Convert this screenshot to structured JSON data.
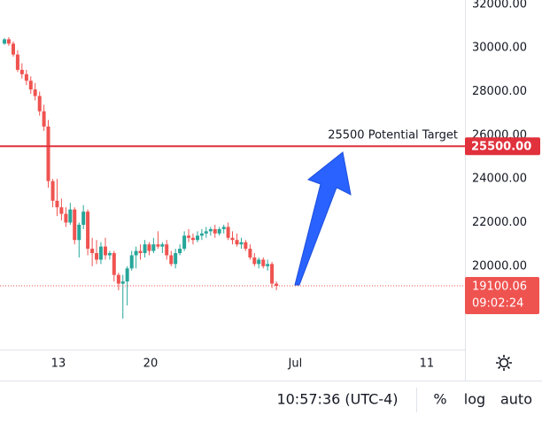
{
  "chart_data": {
    "type": "candlestick",
    "x": [
      8.9,
      9.23,
      9.57,
      9.9,
      10.23,
      10.57,
      10.9,
      11.23,
      11.57,
      11.9,
      12.23,
      12.57,
      12.9,
      13.23,
      13.57,
      13.9,
      14.23,
      14.57,
      14.9,
      15.23,
      15.57,
      15.9,
      16.23,
      16.57,
      16.9,
      17.23,
      17.57,
      17.9,
      18.23,
      18.57,
      18.9,
      19.23,
      19.57,
      19.9,
      20.23,
      20.57,
      20.9,
      21.23,
      21.57,
      21.9,
      22.23,
      22.57,
      22.9,
      23.23,
      23.57,
      23.9,
      24.23,
      24.57,
      24.9,
      25.23,
      25.57,
      25.9,
      26.23,
      26.57,
      26.9,
      27.23,
      27.57,
      27.9,
      28.23,
      28.57,
      28.9,
      29.23,
      29.57
    ],
    "open": [
      30200,
      30400,
      30200,
      29700,
      29000,
      28800,
      28500,
      28100,
      27800,
      27100,
      26400,
      23900,
      23000,
      22700,
      22400,
      22000,
      22600,
      21200,
      21900,
      22500,
      20800,
      20600,
      20300,
      20900,
      20500,
      20600,
      19600,
      19200,
      19300,
      19900,
      20500,
      20700,
      20600,
      21000,
      20700,
      21000,
      20900,
      21000,
      20500,
      20100,
      20600,
      20800,
      21400,
      21300,
      21200,
      21400,
      21500,
      21600,
      21700,
      21500,
      21700,
      21800,
      21300,
      21200,
      21000,
      21100,
      20800,
      20400,
      20100,
      20300,
      20000,
      20100,
      19200
    ],
    "high": [
      30450,
      30500,
      30300,
      29900,
      29300,
      29000,
      28700,
      28400,
      28000,
      27400,
      26700,
      24000,
      24000,
      23100,
      22700,
      22900,
      22700,
      22000,
      22800,
      22600,
      21300,
      21200,
      21100,
      21300,
      20700,
      20700,
      19700,
      19600,
      20000,
      20700,
      20900,
      21000,
      21200,
      21100,
      21300,
      21600,
      21100,
      21200,
      20700,
      20800,
      21000,
      21600,
      21700,
      21500,
      21600,
      21700,
      21800,
      21800,
      21900,
      21800,
      21900,
      22000,
      21600,
      21500,
      21300,
      21200,
      21000,
      20600,
      20400,
      20400,
      20300,
      20200,
      19300
    ],
    "low": [
      30150,
      30100,
      29600,
      28900,
      28600,
      28300,
      27900,
      27600,
      26900,
      26200,
      23600,
      22700,
      22300,
      22100,
      21800,
      21900,
      21000,
      20400,
      21700,
      20500,
      20000,
      20100,
      20100,
      20300,
      20300,
      19300,
      18900,
      17600,
      18200,
      19800,
      19900,
      20300,
      20400,
      20500,
      20600,
      20800,
      20600,
      20300,
      20000,
      19900,
      20500,
      20700,
      21100,
      21000,
      21100,
      21200,
      21300,
      21400,
      21300,
      21400,
      21500,
      21200,
      21000,
      20900,
      20800,
      20700,
      20300,
      20000,
      19900,
      19900,
      19800,
      19000,
      18900
    ],
    "close": [
      30400,
      30200,
      29700,
      29000,
      28800,
      28500,
      28100,
      27800,
      27100,
      26400,
      23900,
      23000,
      22700,
      22400,
      22000,
      22600,
      21200,
      21900,
      22500,
      20800,
      20600,
      20300,
      20900,
      20500,
      20600,
      19600,
      19200,
      19300,
      19900,
      20500,
      20700,
      20600,
      21000,
      20700,
      21000,
      20900,
      21000,
      20500,
      20100,
      20600,
      20800,
      21400,
      21300,
      21200,
      21400,
      21500,
      21600,
      21700,
      21500,
      21700,
      21800,
      21300,
      21200,
      21000,
      21100,
      20800,
      20400,
      20100,
      20300,
      20000,
      20100,
      19200,
      19100
    ],
    "up_color": "#26a69a",
    "down_color": "#ef5350",
    "xlim": [
      8.56,
      43.9
    ],
    "xticks": [
      13,
      20,
      {
        "value": 31,
        "label": "Jul"
      },
      {
        "value": 41,
        "label": "11"
      }
    ],
    "ylim": [
      16180,
      32200
    ],
    "yticks": [
      {
        "value": 32000,
        "label": "32000.00"
      },
      {
        "value": 30000,
        "label": "30000.00"
      },
      {
        "value": 28000,
        "label": "28000.00"
      },
      {
        "value": 26000,
        "label": "26000.00"
      },
      {
        "value": 24000,
        "label": "24000.00"
      },
      {
        "value": 22000,
        "label": "22000.00"
      },
      {
        "value": 20000,
        "label": "20000.00"
      }
    ],
    "grid": false,
    "log_scale": false,
    "hline": {
      "value": 25500,
      "label": "25500.00",
      "color": "#e0313c",
      "annotation": "25500 Potential Target"
    },
    "last_price": 19100.06,
    "countdown": "09:02:24"
  },
  "toolbar": {
    "clock": "10:57:36 (UTC-4)",
    "buttons": [
      "%",
      "log",
      "auto"
    ]
  }
}
